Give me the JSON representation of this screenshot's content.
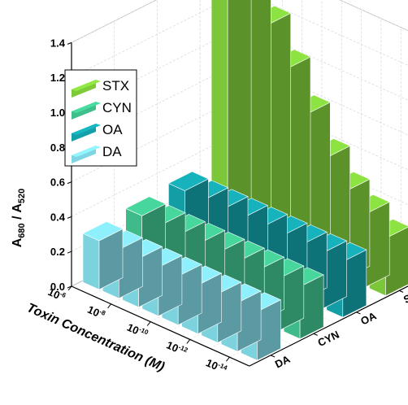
{
  "chart_data": {
    "type": "bar",
    "title": "",
    "ylabel": {
      "main": "A",
      "sub1": "680",
      "sep": " / A",
      "sub2": "520"
    },
    "xlabel": "Toxin Concentration (M)",
    "ylim": [
      0.0,
      1.4
    ],
    "yticks": [
      "0.0",
      "0.2",
      "0.4",
      "0.6",
      "0.8",
      "1.0",
      "1.2",
      "1.4"
    ],
    "concentrations": [
      "10",
      "10",
      "10",
      "10",
      "10"
    ],
    "concentration_exponents": [
      "-6",
      "-8",
      "-10",
      "-12",
      "-14"
    ],
    "toxins": [
      "DA",
      "CYN",
      "OA",
      "STX"
    ],
    "legend": [
      "STX",
      "CYN",
      "OA",
      "DA"
    ],
    "colors": {
      "STX": "#7ecb3a",
      "CYN": "#3fbf8b",
      "OA": "#14a0a8",
      "DA": "#7fd6e2"
    },
    "series": [
      {
        "name": "DA",
        "values": [
          0.28,
          0.28,
          0.28,
          0.28,
          0.28,
          0.28,
          0.28,
          0.28,
          0.28
        ]
      },
      {
        "name": "CYN",
        "values": [
          0.3,
          0.3,
          0.3,
          0.3,
          0.3,
          0.3,
          0.3,
          0.3,
          0.3
        ]
      },
      {
        "name": "OA",
        "values": [
          0.32,
          0.32,
          0.32,
          0.32,
          0.32,
          0.32,
          0.32,
          0.32,
          0.32
        ]
      },
      {
        "name": "STX",
        "values": [
          1.4,
          1.35,
          1.25,
          1.05,
          0.84,
          0.64,
          0.5,
          0.42,
          0.33
        ]
      }
    ],
    "legend_position": "top-left",
    "grid": true
  }
}
